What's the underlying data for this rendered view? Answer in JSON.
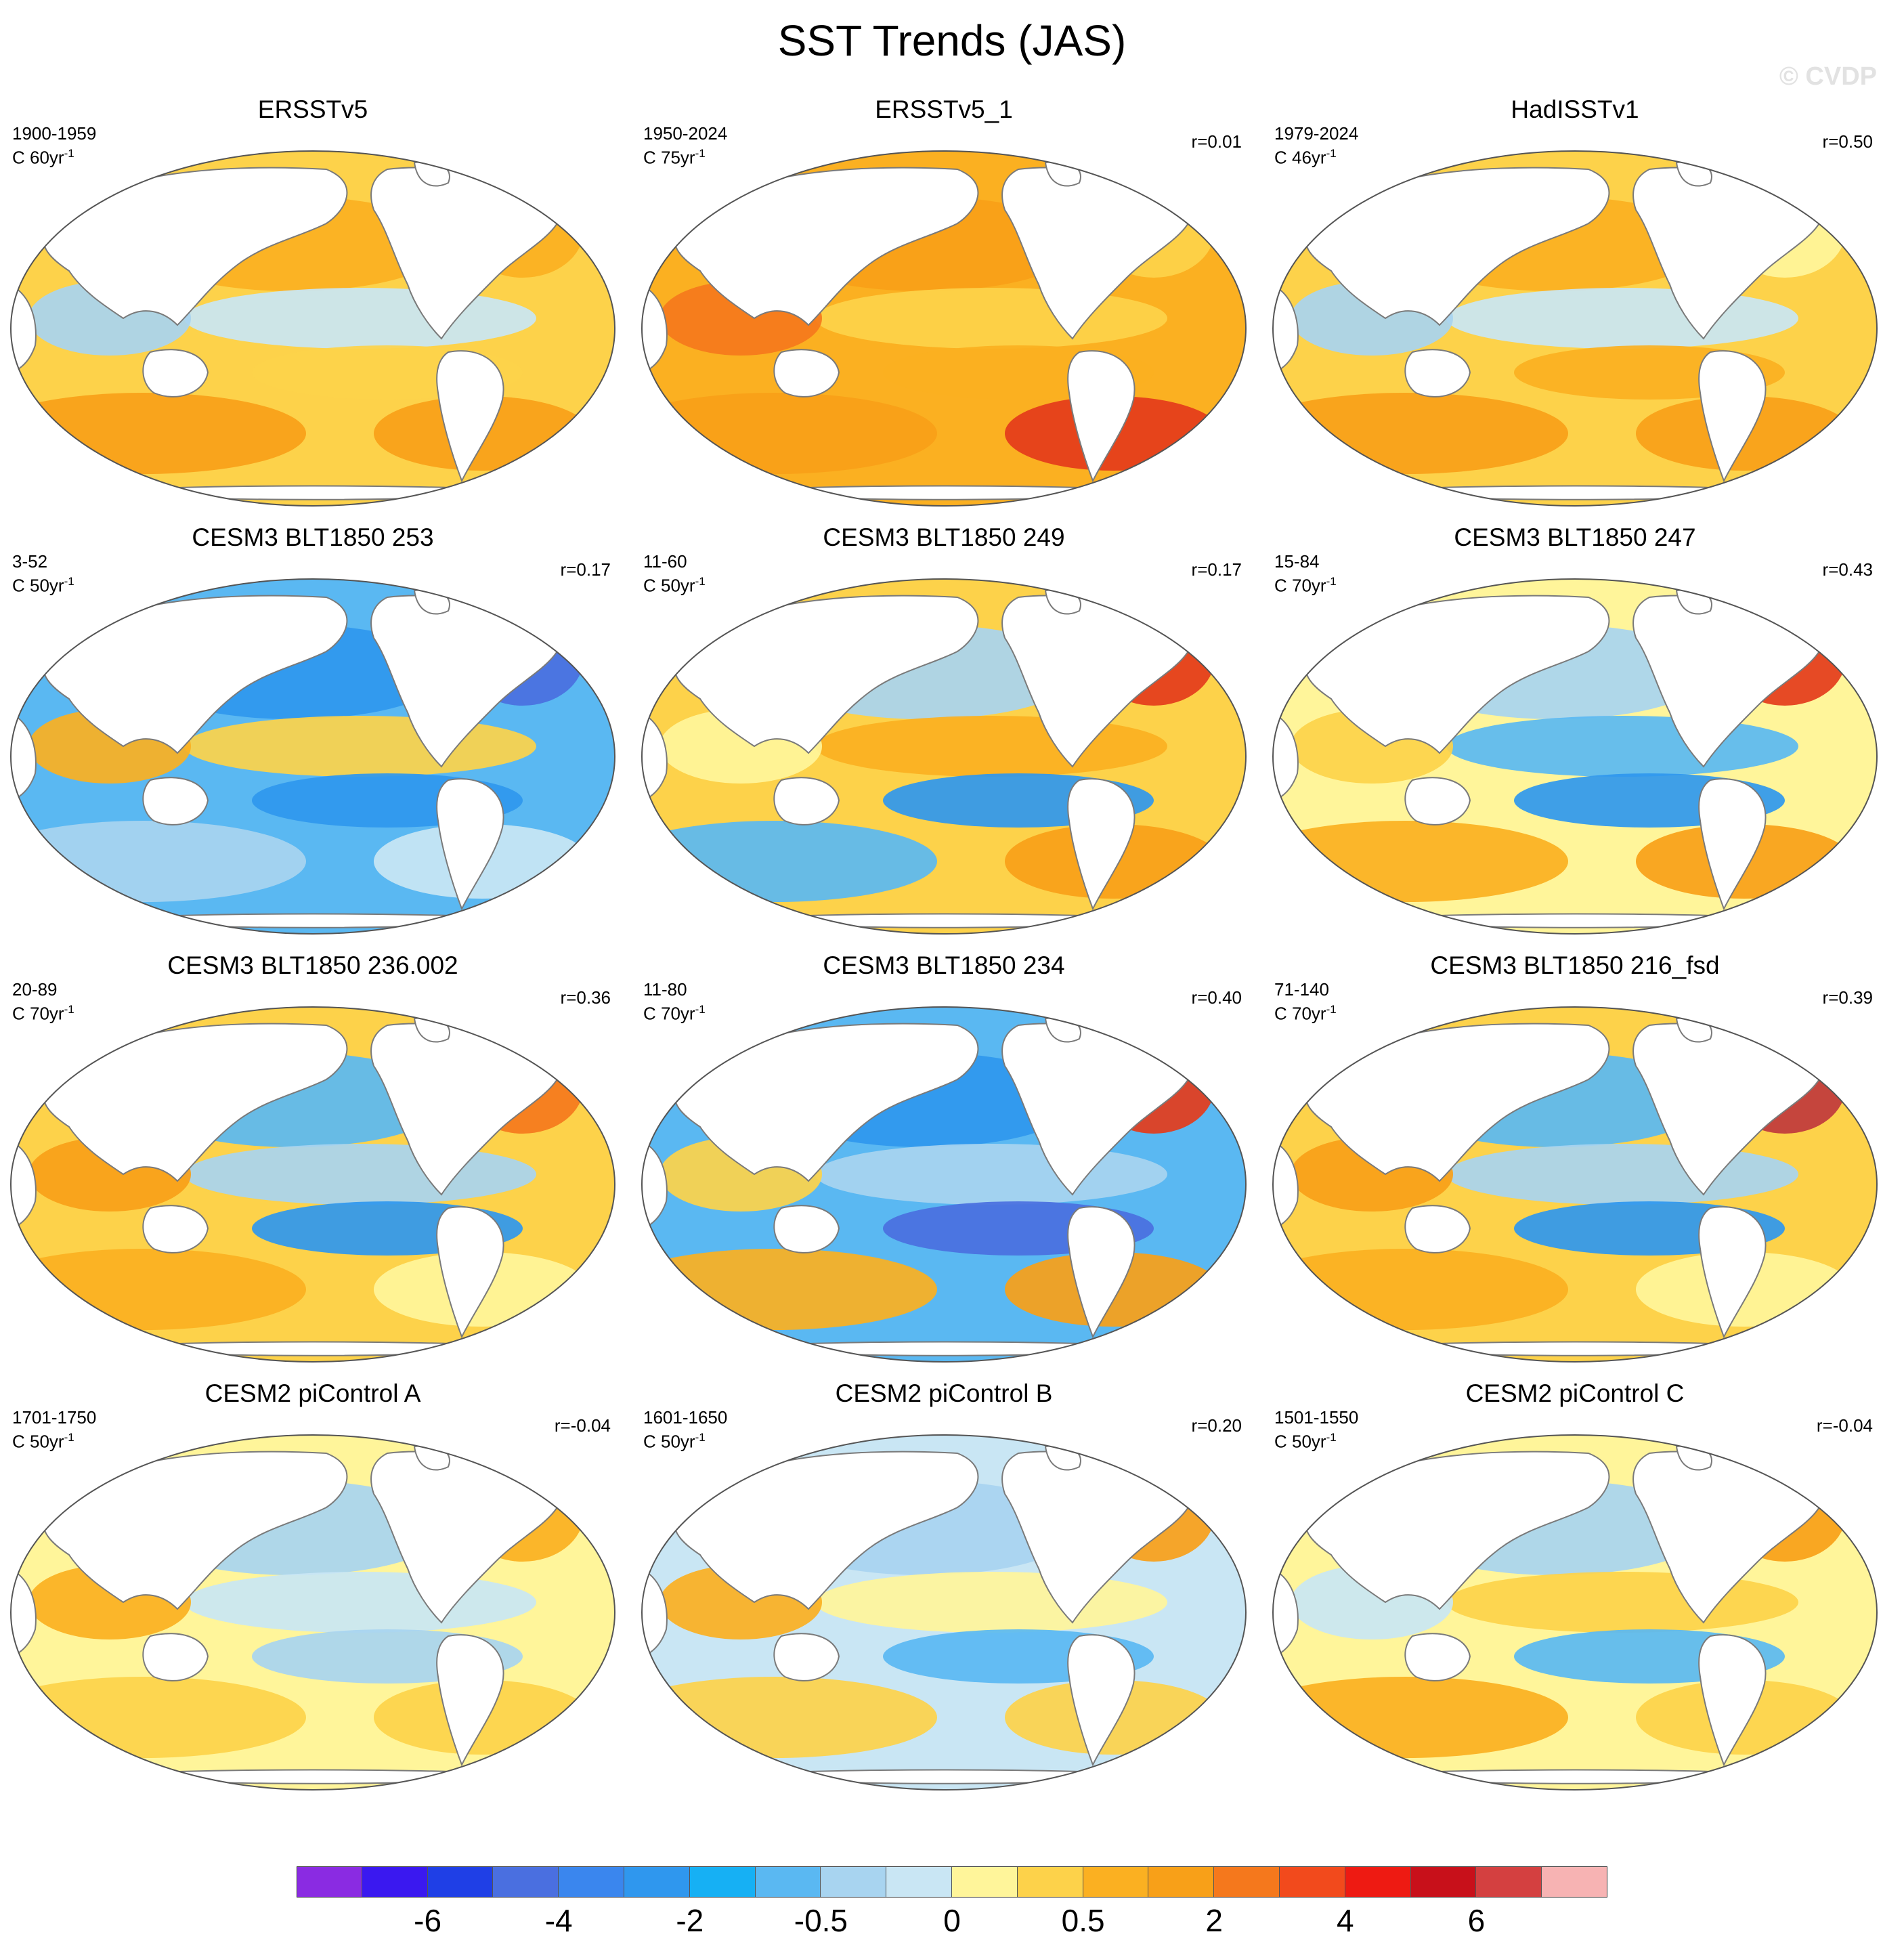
{
  "title": "SST Trends (JAS)",
  "watermark": "© CVDP",
  "palette": {
    "land": "#ffffff",
    "coast": "#7a7a7a",
    "outline": "#555555"
  },
  "panels": [
    {
      "title": "ERSSTv5",
      "period": "1900-1959",
      "units": "C 60yr",
      "r": "",
      "base": "#fdd24a",
      "patches": [
        "#fbb021",
        "#f8a018",
        "#c9e6f4",
        "#a8d4f0",
        "#fdd24a",
        "#f8a018",
        "#fbb021"
      ]
    },
    {
      "title": "ERSSTv5_1",
      "period": "1950-2024",
      "units": "C 75yr",
      "r": "r=0.01",
      "base": "#fbb021",
      "patches": [
        "#f8a018",
        "#f8a018",
        "#fdd24a",
        "#f5781c",
        "#fbb021",
        "#e43b1b",
        "#fdd24a"
      ]
    },
    {
      "title": "HadISSTv1",
      "period": "1979-2024",
      "units": "C 46yr",
      "r": "r=0.50",
      "base": "#fdd24a",
      "patches": [
        "#fbb021",
        "#f8a018",
        "#c9e6f4",
        "#a8d4f0",
        "#fbb021",
        "#f8a018",
        "#fff59a"
      ]
    },
    {
      "title": "CESM3 BLT1850 253",
      "period": "3-52",
      "units": "C 50yr",
      "r": "r=0.17",
      "base": "#5ab8f2",
      "patches": [
        "#2f97ee",
        "#a8d4f0",
        "#fdd24a",
        "#fbb021",
        "#2f97ee",
        "#c9e6f4",
        "#4a6fe0"
      ]
    },
    {
      "title": "CESM3 BLT1850 249",
      "period": "11-60",
      "units": "C 50yr",
      "r": "r=0.17",
      "base": "#fdd24a",
      "patches": [
        "#a8d4f0",
        "#5ab8f2",
        "#fbb021",
        "#fff59a",
        "#2f97ee",
        "#f8a018",
        "#e43b1b"
      ]
    },
    {
      "title": "CESM3 BLT1850 247",
      "period": "15-84",
      "units": "C 70yr",
      "r": "r=0.43",
      "base": "#fff59a",
      "patches": [
        "#a8d4f0",
        "#fbb021",
        "#5ab8f2",
        "#fdd24a",
        "#2f97ee",
        "#f8a018",
        "#e43b1b"
      ]
    },
    {
      "title": "CESM3 BLT1850 236.002",
      "period": "20-89",
      "units": "C 70yr",
      "r": "r=0.36",
      "base": "#fdd24a",
      "patches": [
        "#5ab8f2",
        "#fbb021",
        "#a8d4f0",
        "#f8a018",
        "#2f97ee",
        "#fff59a",
        "#f5781c"
      ]
    },
    {
      "title": "CESM3 BLT1850 234",
      "period": "11-80",
      "units": "C 70yr",
      "r": "r=0.40",
      "base": "#5ab8f2",
      "patches": [
        "#2f97ee",
        "#fbb021",
        "#a8d4f0",
        "#fdd24a",
        "#4a6fe0",
        "#f8a018",
        "#e43b1b"
      ]
    },
    {
      "title": "CESM3 BLT1850 216_fsd",
      "period": "71-140",
      "units": "C 70yr",
      "r": "r=0.39",
      "base": "#fdd24a",
      "patches": [
        "#5ab8f2",
        "#fbb021",
        "#a8d4f0",
        "#f8a018",
        "#2f97ee",
        "#fff59a",
        "#c0383c"
      ]
    },
    {
      "title": "CESM2 piControl A",
      "period": "1701-1750",
      "units": "C 50yr",
      "r": "r=-0.04",
      "base": "#fff59a",
      "patches": [
        "#a8d4f0",
        "#fdd24a",
        "#c9e6f4",
        "#fbb021",
        "#a8d4f0",
        "#fdd24a",
        "#fbb021"
      ]
    },
    {
      "title": "CESM2 piControl B",
      "period": "1601-1650",
      "units": "C 50yr",
      "r": "r=0.20",
      "base": "#c9e6f4",
      "patches": [
        "#a8d4f0",
        "#fdd24a",
        "#fff59a",
        "#fbb021",
        "#5ab8f2",
        "#fdd24a",
        "#f8a018"
      ]
    },
    {
      "title": "CESM2 piControl C",
      "period": "1501-1550",
      "units": "C 50yr",
      "r": "r=-0.04",
      "base": "#fff59a",
      "patches": [
        "#a8d4f0",
        "#fbb021",
        "#fdd24a",
        "#c9e6f4",
        "#5ab8f2",
        "#fdd24a",
        "#f8a018"
      ]
    }
  ],
  "colorbar": {
    "colors": [
      "#8a2be2",
      "#3a18f0",
      "#1f3fe6",
      "#4a6fe0",
      "#3a86ee",
      "#2f97ee",
      "#16b0f4",
      "#5ab8f2",
      "#a8d4f0",
      "#c9e6f4",
      "#fff59a",
      "#fdd24a",
      "#fbb021",
      "#f8a018",
      "#f5781c",
      "#f24a1c",
      "#ee1a12",
      "#c8101a",
      "#d44040",
      "#f7b3b3"
    ],
    "labels": [
      {
        "text": "-6",
        "boundary": 2
      },
      {
        "text": "-4",
        "boundary": 4
      },
      {
        "text": "-2",
        "boundary": 6
      },
      {
        "text": "-0.5",
        "boundary": 8
      },
      {
        "text": "0",
        "boundary": 10
      },
      {
        "text": "0.5",
        "boundary": 12
      },
      {
        "text": "2",
        "boundary": 14
      },
      {
        "text": "4",
        "boundary": 16
      },
      {
        "text": "6",
        "boundary": 18
      }
    ]
  }
}
